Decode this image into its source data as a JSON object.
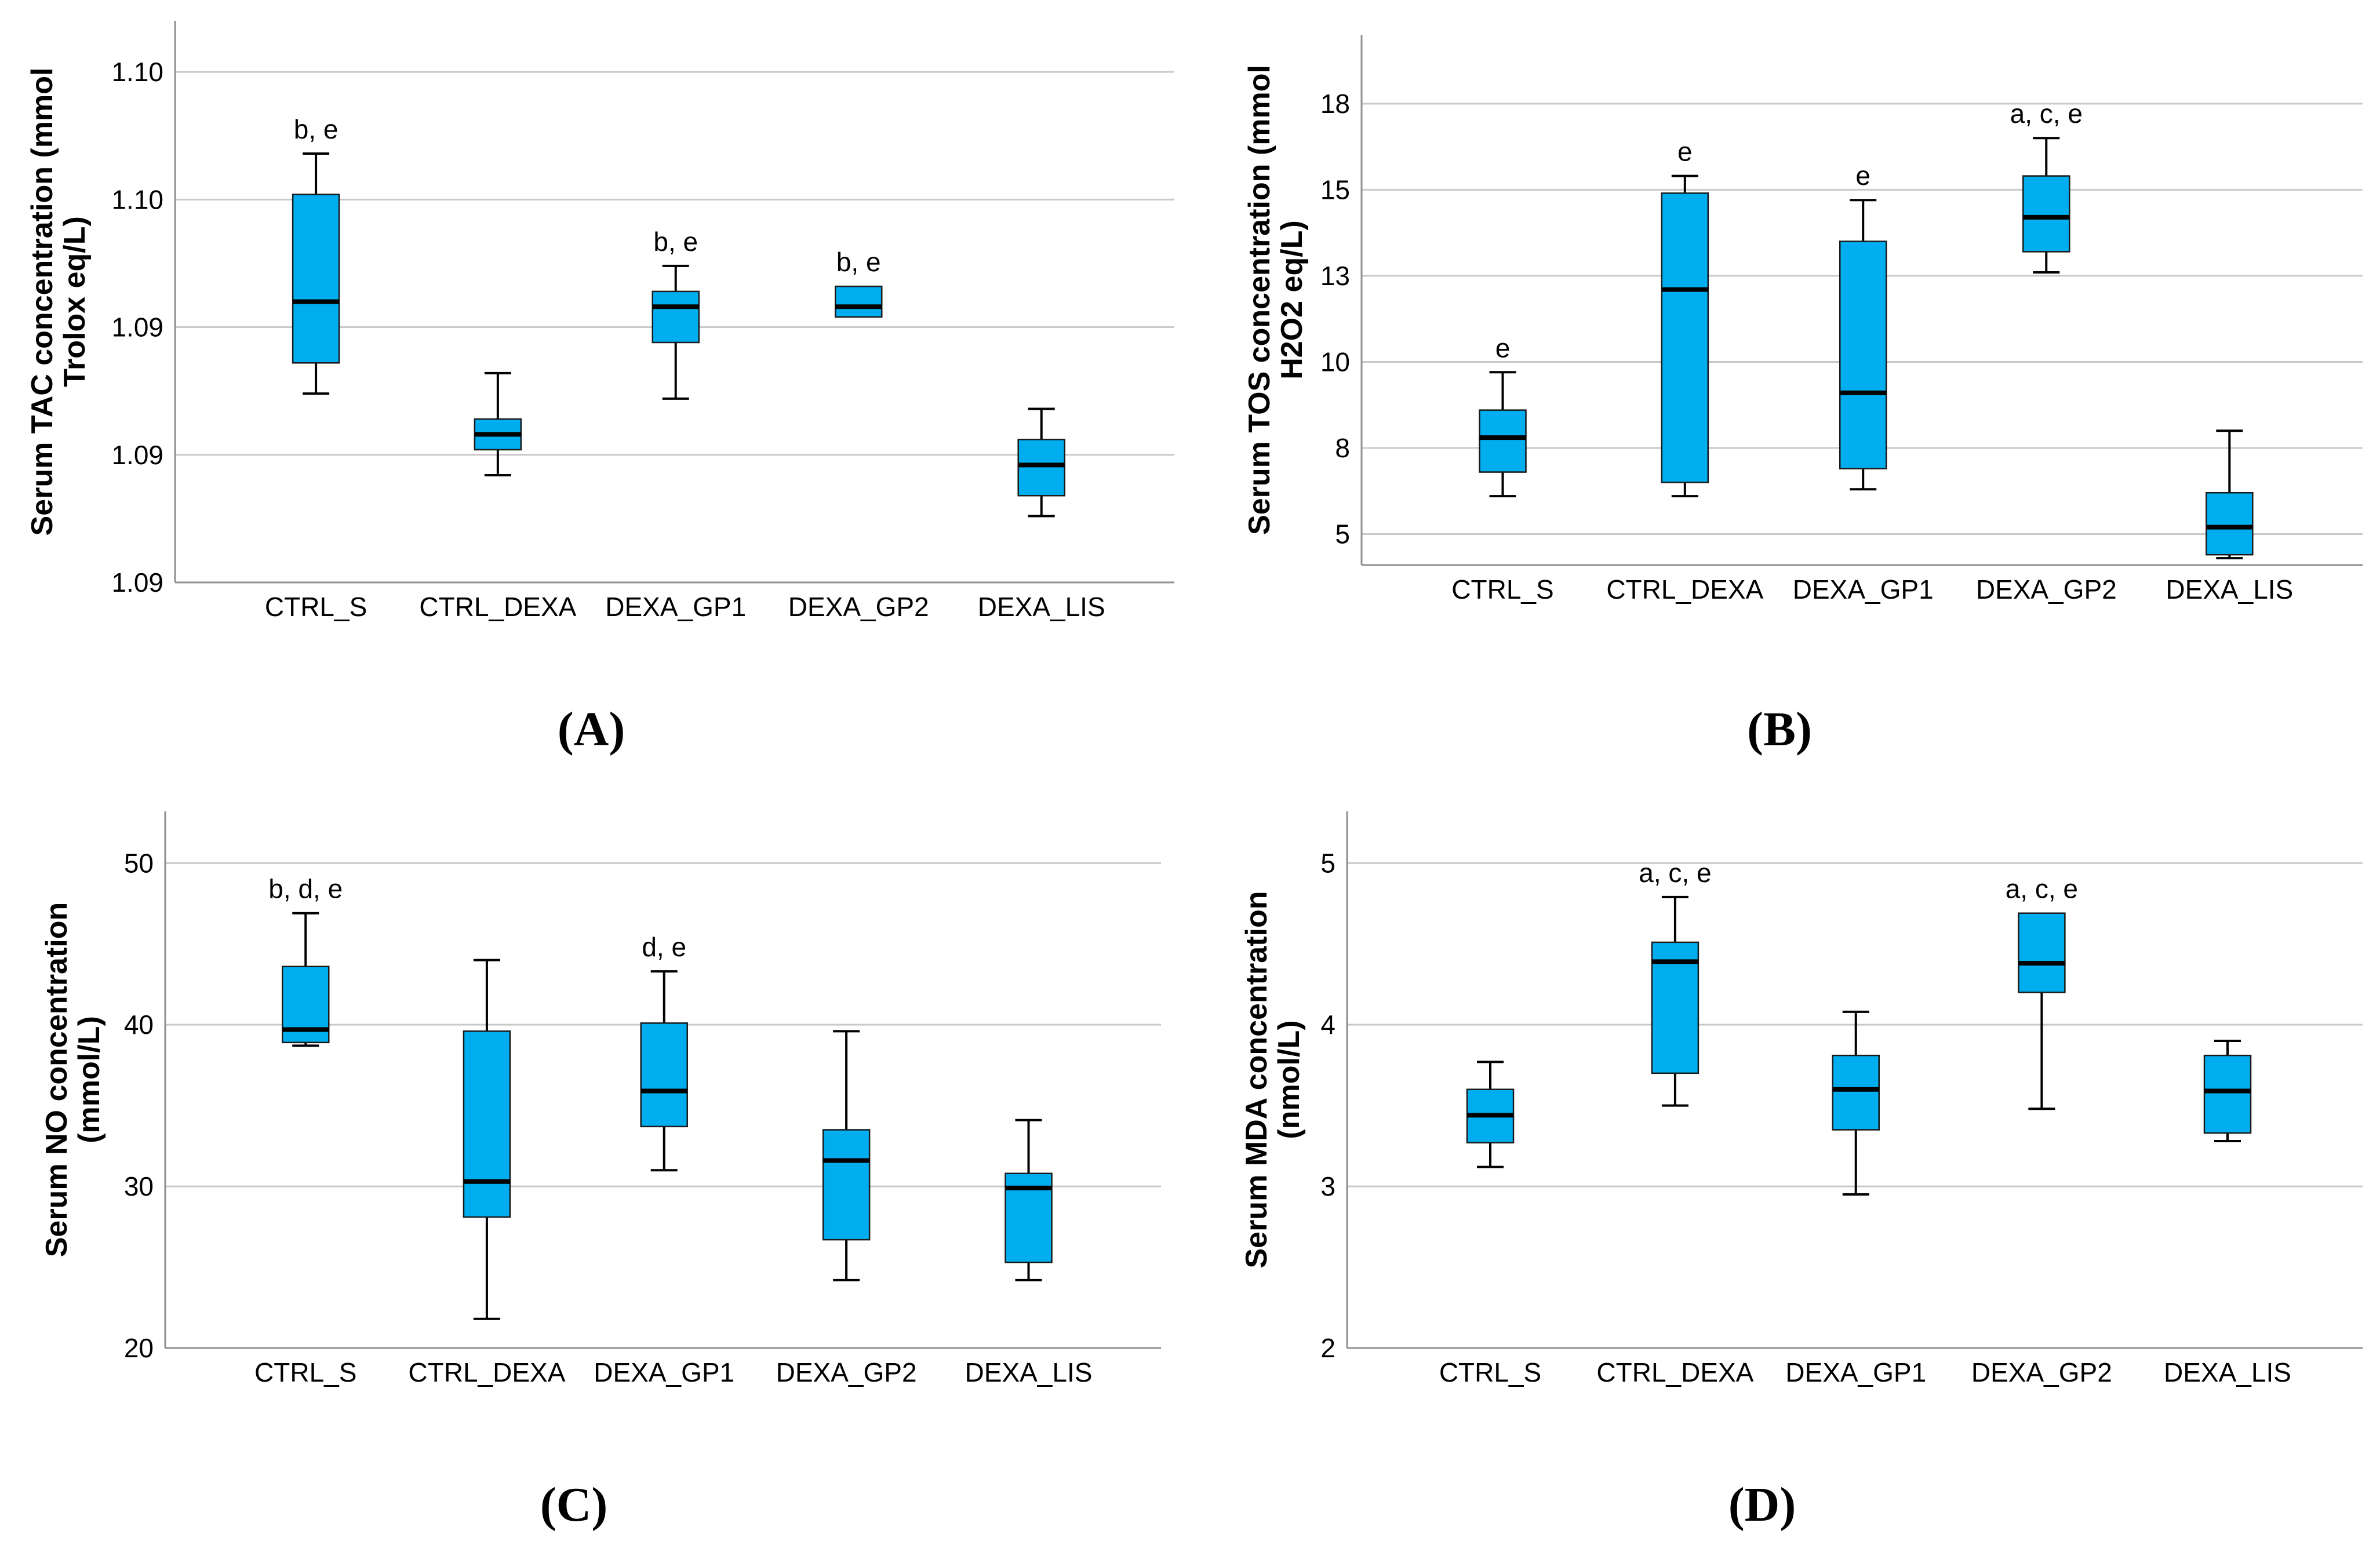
{
  "figure": {
    "colors": {
      "background": "#ffffff",
      "box_fill": "#00aeef",
      "box_border": "#1a1a1a",
      "median_line": "#000000",
      "whisker": "#000000",
      "gridline": "#c9c9c9",
      "axis": "#8f8f8f",
      "text": "#000000"
    }
  },
  "chart_data": [
    {
      "panel": "A",
      "type": "box",
      "caption": "(A)",
      "ylabel_lines": [
        "Serum TAC concentration (mmol",
        "Trolox eq/L)"
      ],
      "ylim": [
        1.09,
        1.101
      ],
      "grid": true,
      "yticks": [
        {
          "value": 1.09,
          "label": "1.09"
        },
        {
          "value": 1.0925,
          "label": "1.09"
        },
        {
          "value": 1.095,
          "label": "1.09"
        },
        {
          "value": 1.0975,
          "label": "1.10"
        },
        {
          "value": 1.1,
          "label": "1.10"
        }
      ],
      "categories": [
        "CTRL_S",
        "CTRL_DEXA",
        "DEXA_GP1",
        "DEXA_GP2",
        "DEXA_LIS"
      ],
      "boxes": [
        {
          "category": "CTRL_S",
          "min": 1.0937,
          "q1": 1.0943,
          "median": 1.0955,
          "q3": 1.0976,
          "max": 1.0984,
          "annotation": "b, e"
        },
        {
          "category": "CTRL_DEXA",
          "min": 1.0921,
          "q1": 1.0926,
          "median": 1.0929,
          "q3": 1.0932,
          "max": 1.0941,
          "annotation": null
        },
        {
          "category": "DEXA_GP1",
          "min": 1.0936,
          "q1": 1.0947,
          "median": 1.0954,
          "q3": 1.0957,
          "max": 1.0962,
          "annotation": "b, e"
        },
        {
          "category": "DEXA_GP2",
          "min": 1.0952,
          "q1": 1.0952,
          "median": 1.0954,
          "q3": 1.0958,
          "max": 1.0958,
          "annotation": "b, e"
        },
        {
          "category": "DEXA_LIS",
          "min": 1.0913,
          "q1": 1.0917,
          "median": 1.0923,
          "q3": 1.0928,
          "max": 1.0934,
          "annotation": null
        }
      ]
    },
    {
      "panel": "B",
      "type": "box",
      "caption": "(B)",
      "ylabel_lines": [
        "Serum TOS concentration (mmol",
        "H2O2 eq/L)"
      ],
      "ylim": [
        4.1,
        19.5
      ],
      "grid": true,
      "yticks": [
        {
          "value": 5,
          "label": "5"
        },
        {
          "value": 7.5,
          "label": "8"
        },
        {
          "value": 10,
          "label": "10"
        },
        {
          "value": 12.5,
          "label": "13"
        },
        {
          "value": 15,
          "label": "15"
        },
        {
          "value": 17.5,
          "label": "18"
        }
      ],
      "categories": [
        "CTRL_S",
        "CTRL_DEXA",
        "DEXA_GP1",
        "DEXA_GP2",
        "DEXA_LIS"
      ],
      "boxes": [
        {
          "category": "CTRL_S",
          "min": 6.1,
          "q1": 6.8,
          "median": 7.8,
          "q3": 8.6,
          "max": 9.7,
          "annotation": "e"
        },
        {
          "category": "CTRL_DEXA",
          "min": 6.1,
          "q1": 6.5,
          "median": 12.1,
          "q3": 14.9,
          "max": 15.4,
          "annotation": "e"
        },
        {
          "category": "DEXA_GP1",
          "min": 6.3,
          "q1": 6.9,
          "median": 9.1,
          "q3": 13.5,
          "max": 14.7,
          "annotation": "e"
        },
        {
          "category": "DEXA_GP2",
          "min": 12.6,
          "q1": 13.2,
          "median": 14.2,
          "q3": 15.4,
          "max": 16.5,
          "annotation": "a, c, e"
        },
        {
          "category": "DEXA_LIS",
          "min": 4.3,
          "q1": 4.4,
          "median": 5.2,
          "q3": 6.2,
          "max": 8.0,
          "annotation": null
        }
      ]
    },
    {
      "panel": "C",
      "type": "box",
      "caption": "(C)",
      "ylabel_lines": [
        "Serum NO concentration",
        "(mmol/L)"
      ],
      "ylim": [
        20,
        53.2
      ],
      "grid": true,
      "yticks": [
        {
          "value": 20,
          "label": "20"
        },
        {
          "value": 30,
          "label": "30"
        },
        {
          "value": 40,
          "label": "40"
        },
        {
          "value": 50,
          "label": "50"
        }
      ],
      "categories": [
        "CTRL_S",
        "CTRL_DEXA",
        "DEXA_GP1",
        "DEXA_GP2",
        "DEXA_LIS"
      ],
      "boxes": [
        {
          "category": "CTRL_S",
          "min": 38.7,
          "q1": 38.9,
          "median": 39.7,
          "q3": 43.6,
          "max": 46.9,
          "annotation": "b, d, e"
        },
        {
          "category": "CTRL_DEXA",
          "min": 21.8,
          "q1": 28.1,
          "median": 30.3,
          "q3": 39.6,
          "max": 44.0,
          "annotation": null
        },
        {
          "category": "DEXA_GP1",
          "min": 31.0,
          "q1": 33.7,
          "median": 35.9,
          "q3": 40.1,
          "max": 43.3,
          "annotation": "d, e"
        },
        {
          "category": "DEXA_GP2",
          "min": 24.2,
          "q1": 26.7,
          "median": 31.6,
          "q3": 33.5,
          "max": 39.6,
          "annotation": null
        },
        {
          "category": "DEXA_LIS",
          "min": 24.2,
          "q1": 25.3,
          "median": 29.9,
          "q3": 30.8,
          "max": 34.1,
          "annotation": null
        }
      ]
    },
    {
      "panel": "D",
      "type": "box",
      "caption": "(D)",
      "ylabel_lines": [
        "Serum MDA concentration",
        "(nmol/L)"
      ],
      "ylim": [
        2,
        5.32
      ],
      "grid": true,
      "yticks": [
        {
          "value": 2,
          "label": "2"
        },
        {
          "value": 3,
          "label": "3"
        },
        {
          "value": 4,
          "label": "4"
        },
        {
          "value": 5,
          "label": "5"
        }
      ],
      "categories": [
        "CTRL_S",
        "CTRL_DEXA",
        "DEXA_GP1",
        "DEXA_GP2",
        "DEXA_LIS"
      ],
      "boxes": [
        {
          "category": "CTRL_S",
          "min": 3.12,
          "q1": 3.27,
          "median": 3.44,
          "q3": 3.6,
          "max": 3.77,
          "annotation": null
        },
        {
          "category": "CTRL_DEXA",
          "min": 3.5,
          "q1": 3.7,
          "median": 4.39,
          "q3": 4.51,
          "max": 4.79,
          "annotation": "a, c, e"
        },
        {
          "category": "DEXA_GP1",
          "min": 2.95,
          "q1": 3.35,
          "median": 3.6,
          "q3": 3.81,
          "max": 4.08,
          "annotation": null
        },
        {
          "category": "DEXA_GP2",
          "min": 3.48,
          "q1": 4.2,
          "median": 4.38,
          "q3": 4.69,
          "max": 4.69,
          "annotation": "a, c, e"
        },
        {
          "category": "DEXA_LIS",
          "min": 3.28,
          "q1": 3.33,
          "median": 3.59,
          "q3": 3.81,
          "max": 3.9,
          "annotation": null
        }
      ]
    }
  ]
}
